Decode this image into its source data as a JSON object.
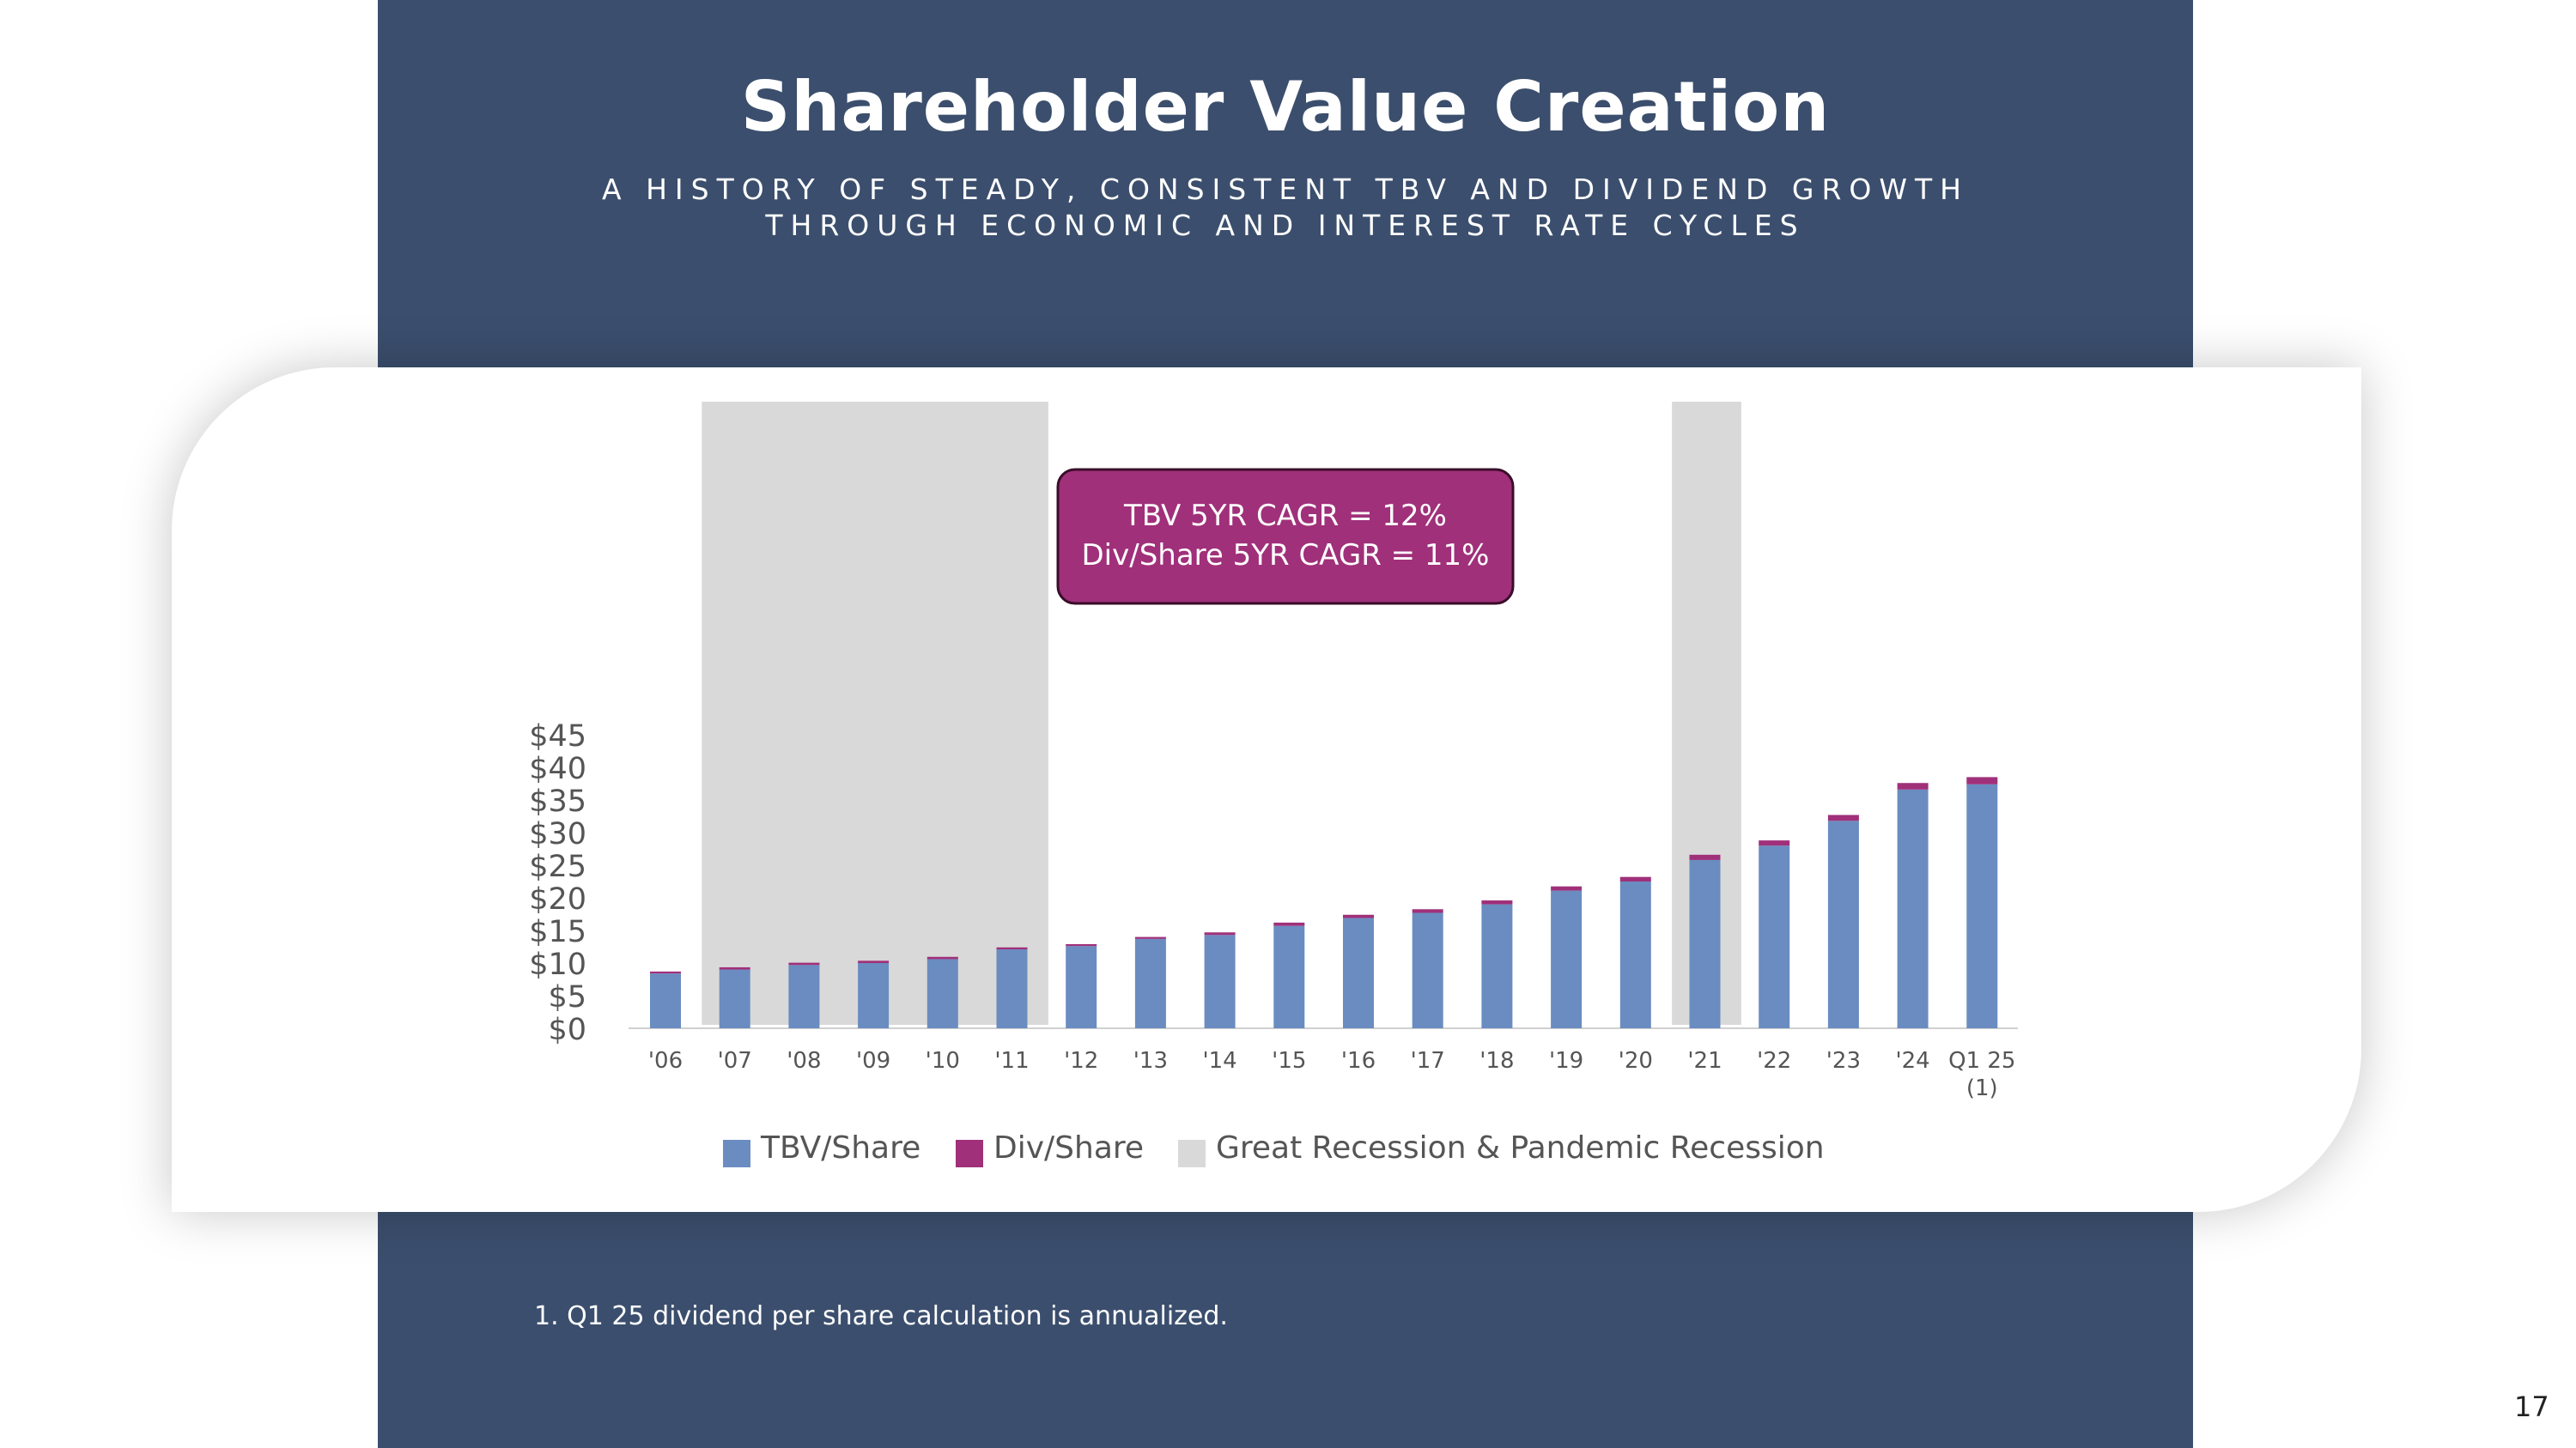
{
  "slide": {
    "title": "Shareholder Value Creation",
    "subtitle": "A HISTORY OF STEADY, CONSISTENT TBV AND DIVIDEND GROWTH THROUGH ECONOMIC AND INTEREST RATE CYCLES",
    "footnote": "1. Q1 25 dividend per share calculation is annualized.",
    "page_number": "17"
  },
  "colors": {
    "navy": "#3b4e6d",
    "tbv": "#6a8cc0",
    "div": "#a0307a",
    "recession": "#d9d9d9",
    "axis_text": "#555555"
  },
  "chart_data": {
    "type": "bar",
    "stacked": true,
    "categories": [
      "'06",
      "'07",
      "'08",
      "'09",
      "'10",
      "'11",
      "'12",
      "'13",
      "'14",
      "'15",
      "'16",
      "'17",
      "'18",
      "'19",
      "'20",
      "'21",
      "'22",
      "'23",
      "'24",
      "Q1 25 (1)"
    ],
    "series": [
      {
        "name": "TBV/Share",
        "values": [
          8.4,
          9.0,
          9.7,
          10.0,
          10.6,
          12.1,
          12.6,
          13.7,
          14.3,
          15.7,
          16.9,
          17.7,
          19.0,
          21.1,
          22.5,
          25.8,
          28.0,
          31.8,
          36.6,
          37.4
        ]
      },
      {
        "name": "Div/Share",
        "values": [
          0.3,
          0.35,
          0.35,
          0.35,
          0.35,
          0.3,
          0.3,
          0.3,
          0.4,
          0.5,
          0.5,
          0.55,
          0.6,
          0.65,
          0.7,
          0.8,
          0.8,
          0.9,
          1.0,
          1.1
        ]
      }
    ],
    "recession_bands": [
      {
        "start": "'07",
        "end": "'11",
        "label": "Great Recession & Pandemic Recession"
      },
      {
        "start": "'21",
        "end": "'21",
        "label": "Great Recession & Pandemic Recession"
      }
    ],
    "y_ticks": [
      "$0",
      "$5",
      "$10",
      "$15",
      "$20",
      "$25",
      "$30",
      "$35",
      "$40",
      "$45"
    ],
    "ylim": [
      0,
      48
    ],
    "legend": [
      {
        "label": "TBV/Share",
        "color": "#6a8cc0"
      },
      {
        "label": "Div/Share",
        "color": "#a0307a"
      },
      {
        "label": "Great Recession & Pandemic Recession",
        "color": "#d9d9d9"
      }
    ],
    "annotation": {
      "line1": "TBV 5YR CAGR = 12%",
      "line2": "Div/Share 5YR CAGR = 11%"
    }
  }
}
